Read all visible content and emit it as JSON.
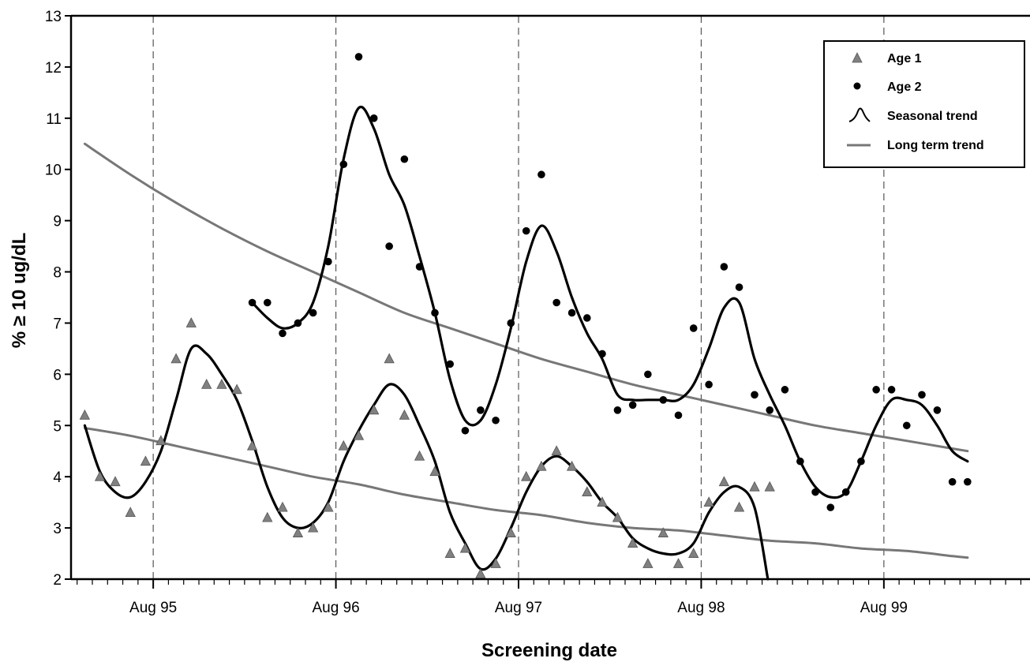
{
  "chart_data": {
    "type": "line",
    "title": "",
    "xlabel": "Screening date",
    "ylabel": "% ≥ 10 ug/dL",
    "xlim": [
      1994.55,
      1999.8
    ],
    "ylim": [
      2,
      13
    ],
    "yticks": [
      2,
      3,
      4,
      5,
      6,
      7,
      8,
      9,
      10,
      11,
      12,
      13
    ],
    "xticks": [
      {
        "label": "Aug 95",
        "x": 1995.0
      },
      {
        "label": "Aug 96",
        "x": 1996.0
      },
      {
        "label": "Aug 97",
        "x": 1997.0
      },
      {
        "label": "Aug 98",
        "x": 1998.0
      },
      {
        "label": "Aug 99",
        "x": 1999.0
      }
    ],
    "reference_lines": [
      1995.0,
      1996.0,
      1997.0,
      1998.0,
      1999.0
    ],
    "grid": false,
    "legend_position": "top-right",
    "legend": [
      {
        "label": "Age 1",
        "marker": "triangle"
      },
      {
        "label": "Age 2",
        "marker": "circle"
      },
      {
        "label": "Seasonal trend",
        "marker": "curve"
      },
      {
        "label": "Long term trend",
        "marker": "line"
      }
    ],
    "colors": {
      "age1": "#808080",
      "age2": "#000000",
      "seasonal": "#000000",
      "longterm": "#777777"
    },
    "series": [
      {
        "name": "Age 1",
        "kind": "points",
        "marker": "triangle",
        "x": [
          1994.625,
          1994.708,
          1994.792,
          1994.875,
          1994.958,
          1995.042,
          1995.125,
          1995.208,
          1995.292,
          1995.375,
          1995.458,
          1995.542,
          1995.625,
          1995.708,
          1995.792,
          1995.875,
          1995.958,
          1996.042,
          1996.125,
          1996.208,
          1996.292,
          1996.375,
          1996.458,
          1996.542,
          1996.625,
          1996.708,
          1996.792,
          1996.875,
          1996.958,
          1997.042,
          1997.125,
          1997.208,
          1997.292,
          1997.375,
          1997.458,
          1997.542,
          1997.625,
          1997.708,
          1997.792,
          1997.875,
          1997.958,
          1998.042,
          1998.125,
          1998.208,
          1998.292,
          1998.375
        ],
        "y": [
          5.2,
          4.0,
          3.9,
          3.3,
          4.3,
          4.7,
          6.3,
          7.0,
          5.8,
          5.8,
          5.7,
          4.6,
          3.2,
          3.4,
          2.9,
          3.0,
          3.4,
          4.6,
          4.8,
          5.3,
          6.3,
          5.2,
          4.4,
          4.1,
          2.5,
          2.6,
          2.1,
          2.3,
          2.9,
          4.0,
          4.2,
          4.5,
          4.2,
          3.7,
          3.5,
          3.2,
          2.7,
          2.3,
          2.9,
          2.3,
          2.5,
          3.5,
          3.9,
          3.4,
          3.8,
          3.8
        ]
      },
      {
        "name": "Age 2",
        "kind": "points",
        "marker": "circle",
        "x": [
          1995.542,
          1995.625,
          1995.708,
          1995.792,
          1995.875,
          1995.958,
          1996.042,
          1996.125,
          1996.208,
          1996.292,
          1996.375,
          1996.458,
          1996.542,
          1996.625,
          1996.708,
          1996.792,
          1996.875,
          1996.958,
          1997.042,
          1997.125,
          1997.208,
          1997.292,
          1997.375,
          1997.458,
          1997.542,
          1997.625,
          1997.708,
          1997.792,
          1997.875,
          1997.958,
          1998.042,
          1998.125,
          1998.208,
          1998.292,
          1998.375,
          1998.458,
          1998.542,
          1998.625,
          1998.708,
          1998.792,
          1998.875,
          1998.958,
          1999.042,
          1999.125,
          1999.208,
          1999.292,
          1999.375,
          1999.458
        ],
        "y": [
          7.4,
          7.4,
          6.8,
          7.0,
          7.2,
          8.2,
          10.1,
          12.2,
          11.0,
          8.5,
          10.2,
          8.1,
          7.2,
          6.2,
          4.9,
          5.3,
          5.1,
          7.0,
          8.8,
          9.9,
          7.4,
          7.2,
          7.1,
          6.4,
          5.3,
          5.4,
          6.0,
          5.5,
          5.2,
          6.9,
          5.8,
          8.1,
          7.7,
          5.6,
          5.3,
          5.7,
          4.3,
          3.7,
          3.4,
          3.7,
          4.3,
          5.7,
          5.7,
          5.0,
          5.6,
          5.3,
          3.9,
          3.9
        ]
      },
      {
        "name": "Seasonal trend",
        "kind": "curve",
        "segments": [
          {
            "x": [
              1994.625,
              1994.708,
              1994.792,
              1994.875,
              1994.958,
              1995.042,
              1995.125,
              1995.208,
              1995.292,
              1995.375,
              1995.458,
              1995.542,
              1995.625,
              1995.708,
              1995.792,
              1995.875,
              1995.958,
              1996.042,
              1996.125,
              1996.208,
              1996.292,
              1996.375,
              1996.458,
              1996.542,
              1996.625,
              1996.708,
              1996.792,
              1996.875,
              1996.958,
              1997.042,
              1997.125,
              1997.208,
              1997.292,
              1997.375,
              1997.458,
              1997.542,
              1997.625,
              1997.708,
              1997.792,
              1997.875,
              1997.958,
              1998.042,
              1998.125,
              1998.208,
              1998.292,
              1998.365
            ],
            "y": [
              5.0,
              4.1,
              3.7,
              3.6,
              3.9,
              4.5,
              5.5,
              6.5,
              6.4,
              6.0,
              5.5,
              4.7,
              3.8,
              3.2,
              3.0,
              3.1,
              3.5,
              4.3,
              4.9,
              5.4,
              5.8,
              5.6,
              5.0,
              4.3,
              3.3,
              2.7,
              2.2,
              2.4,
              3.0,
              3.7,
              4.2,
              4.4,
              4.2,
              3.9,
              3.5,
              3.2,
              2.8,
              2.6,
              2.5,
              2.5,
              2.7,
              3.3,
              3.7,
              3.8,
              3.4,
              2.0
            ]
          },
          {
            "x": [
              1995.542,
              1995.625,
              1995.708,
              1995.792,
              1995.875,
              1995.958,
              1996.042,
              1996.125,
              1996.208,
              1996.292,
              1996.375,
              1996.458,
              1996.542,
              1996.625,
              1996.708,
              1996.792,
              1996.875,
              1996.958,
              1997.042,
              1997.125,
              1997.208,
              1997.292,
              1997.375,
              1997.458,
              1997.542,
              1997.625,
              1997.708,
              1997.792,
              1997.875,
              1997.958,
              1998.042,
              1998.125,
              1998.208,
              1998.292,
              1998.375,
              1998.458,
              1998.542,
              1998.625,
              1998.708,
              1998.792,
              1998.875,
              1998.958,
              1999.042,
              1999.125,
              1999.208,
              1999.292,
              1999.375,
              1999.458
            ],
            "y": [
              7.4,
              7.1,
              6.9,
              7.0,
              7.4,
              8.5,
              10.2,
              11.2,
              10.8,
              9.9,
              9.3,
              8.3,
              7.2,
              5.9,
              5.1,
              5.1,
              5.8,
              6.9,
              8.2,
              8.9,
              8.4,
              7.5,
              6.8,
              6.3,
              5.6,
              5.5,
              5.5,
              5.5,
              5.5,
              5.8,
              6.5,
              7.3,
              7.4,
              6.3,
              5.6,
              5.0,
              4.3,
              3.8,
              3.6,
              3.7,
              4.3,
              5.0,
              5.5,
              5.5,
              5.4,
              5.0,
              4.5,
              4.3
            ]
          }
        ]
      },
      {
        "name": "Long term trend",
        "kind": "curve",
        "segments": [
          {
            "x": [
              1994.625,
              1994.875,
              1995.125,
              1995.375,
              1995.625,
              1995.875,
              1996.125,
              1996.375,
              1996.625,
              1996.875,
              1997.125,
              1997.375,
              1997.625,
              1997.875,
              1998.125,
              1998.375,
              1998.625,
              1998.875,
              1999.125,
              1999.375,
              1999.458
            ],
            "y": [
              10.5,
              9.9,
              9.35,
              8.85,
              8.4,
              8.0,
              7.6,
              7.2,
              6.9,
              6.6,
              6.3,
              6.05,
              5.8,
              5.6,
              5.4,
              5.2,
              5.0,
              4.85,
              4.7,
              4.55,
              4.5
            ]
          },
          {
            "x": [
              1994.625,
              1994.875,
              1995.125,
              1995.375,
              1995.625,
              1995.875,
              1996.125,
              1996.375,
              1996.625,
              1996.875,
              1997.125,
              1997.375,
              1997.625,
              1997.875,
              1998.125,
              1998.375,
              1998.625,
              1998.875,
              1999.125,
              1999.375,
              1999.458
            ],
            "y": [
              4.95,
              4.8,
              4.6,
              4.4,
              4.2,
              4.0,
              3.85,
              3.65,
              3.5,
              3.35,
              3.25,
              3.1,
              3.0,
              2.95,
              2.85,
              2.75,
              2.7,
              2.6,
              2.55,
              2.45,
              2.42
            ]
          }
        ]
      }
    ]
  }
}
